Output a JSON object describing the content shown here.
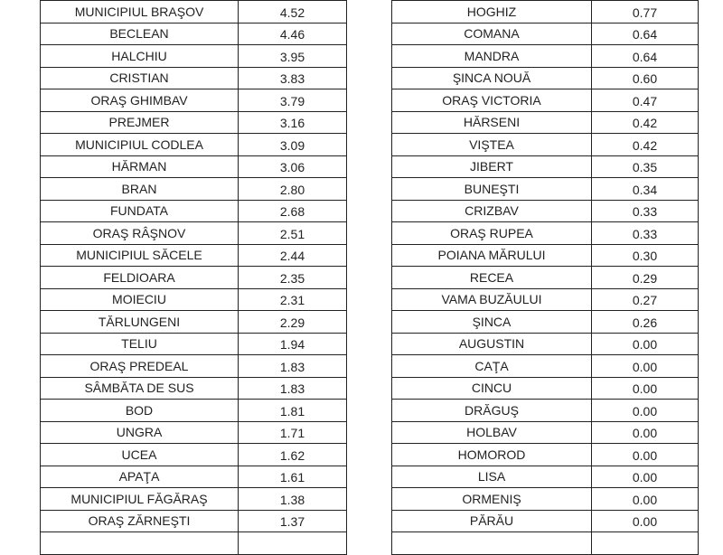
{
  "left_table": [
    [
      "MUNICIPIUL BRAŞOV",
      "4.52"
    ],
    [
      "BECLEAN",
      "4.46"
    ],
    [
      "HALCHIU",
      "3.95"
    ],
    [
      "CRISTIAN",
      "3.83"
    ],
    [
      "ORAŞ GHIMBAV",
      "3.79"
    ],
    [
      "PREJMER",
      "3.16"
    ],
    [
      "MUNICIPIUL CODLEA",
      "3.09"
    ],
    [
      "HĂRMAN",
      "3.06"
    ],
    [
      "BRAN",
      "2.80"
    ],
    [
      "FUNDATA",
      "2.68"
    ],
    [
      "ORAŞ RÂŞNOV",
      "2.51"
    ],
    [
      "MUNICIPIUL SĂCELE",
      "2.44"
    ],
    [
      "FELDIOARA",
      "2.35"
    ],
    [
      "MOIECIU",
      "2.31"
    ],
    [
      "TĂRLUNGENI",
      "2.29"
    ],
    [
      "TELIU",
      "1.94"
    ],
    [
      "ORAŞ PREDEAL",
      "1.83"
    ],
    [
      "SÂMBĂTA DE SUS",
      "1.83"
    ],
    [
      "BOD",
      "1.81"
    ],
    [
      "UNGRA",
      "1.71"
    ],
    [
      "UCEA",
      "1.62"
    ],
    [
      "APAŢA",
      "1.61"
    ],
    [
      "MUNICIPIUL FĂGĂRAŞ",
      "1.38"
    ],
    [
      "ORAŞ ZĂRNEŞTI",
      "1.37"
    ]
  ],
  "right_table": [
    [
      "HOGHIZ",
      "0.77"
    ],
    [
      "COMANA",
      "0.64"
    ],
    [
      "MANDRA",
      "0.64"
    ],
    [
      "ŞINCA NOUĂ",
      "0.60"
    ],
    [
      "ORAŞ VICTORIA",
      "0.47"
    ],
    [
      "HĂRSENI",
      "0.42"
    ],
    [
      "VIŞTEA",
      "0.42"
    ],
    [
      "JIBERT",
      "0.35"
    ],
    [
      "BUNEŞTI",
      "0.34"
    ],
    [
      "CRIZBAV",
      "0.33"
    ],
    [
      "ORAŞ RUPEA",
      "0.33"
    ],
    [
      "POIANA MĂRULUI",
      "0.30"
    ],
    [
      "RECEA",
      "0.29"
    ],
    [
      "VAMA BUZĂULUI",
      "0.27"
    ],
    [
      "ŞINCA",
      "0.26"
    ],
    [
      "AUGUSTIN",
      "0.00"
    ],
    [
      "CAŢA",
      "0.00"
    ],
    [
      "CINCU",
      "0.00"
    ],
    [
      "DRĂGUŞ",
      "0.00"
    ],
    [
      "HOLBAV",
      "0.00"
    ],
    [
      "HOMOROD",
      "0.00"
    ],
    [
      "LISA",
      "0.00"
    ],
    [
      "ORMENIŞ",
      "0.00"
    ],
    [
      "PĂRĂU",
      "0.00"
    ]
  ]
}
